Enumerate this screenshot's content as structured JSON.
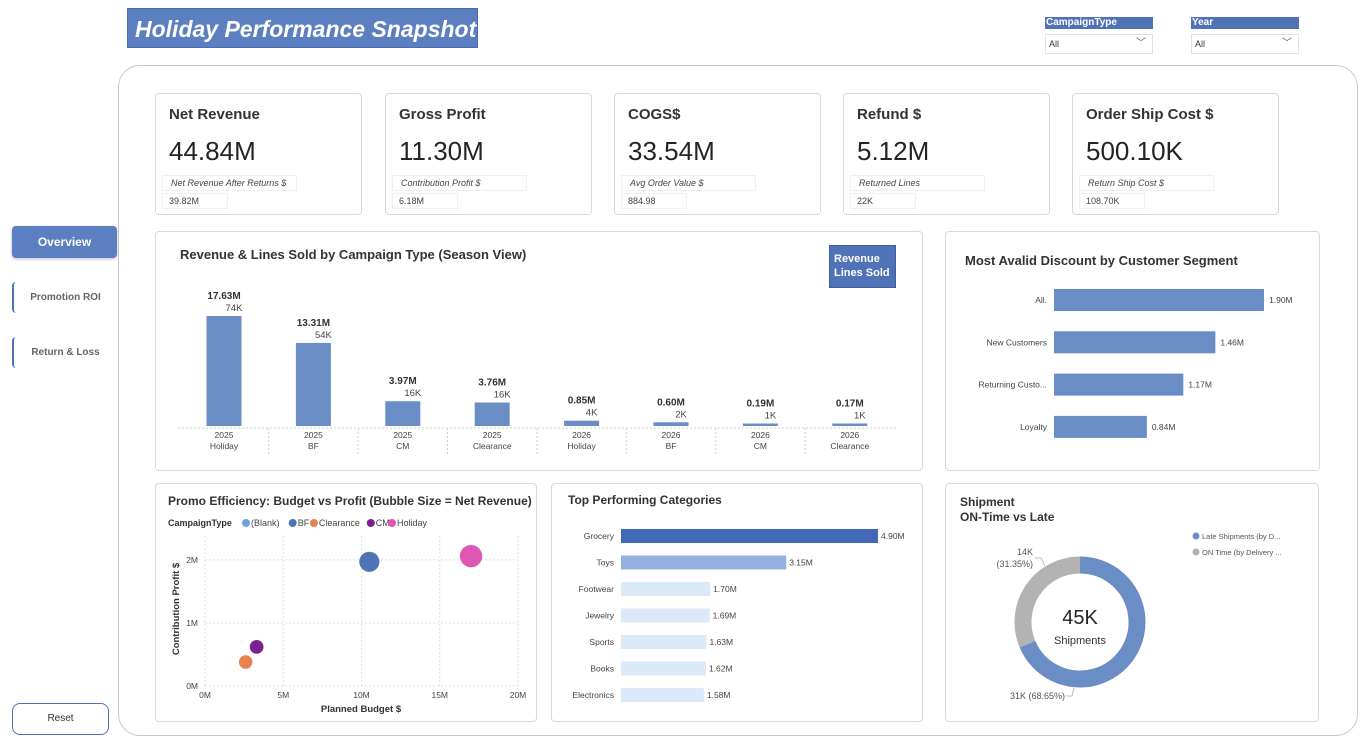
{
  "header": {
    "title": "Holiday Performance Snapshot"
  },
  "slicers": [
    {
      "label": "CampaignType",
      "value": "All"
    },
    {
      "label": "Year",
      "value": "All"
    }
  ],
  "nav": {
    "overview": "Overview",
    "promotion_roi": "Promotion ROI",
    "return_loss": "Return & Loss",
    "reset": "Reset"
  },
  "kpis": [
    {
      "title": "Net Revenue",
      "value": "44.84M",
      "sub_label": "Net Revenue After Returns $",
      "sub_value": "39.82M"
    },
    {
      "title": "Gross Profit",
      "value": "11.30M",
      "sub_label": "Contribution Profit $",
      "sub_value": "6.18M"
    },
    {
      "title": "COGS$",
      "value": "33.54M",
      "sub_label": "Avg Order Value $",
      "sub_value": "884.98"
    },
    {
      "title": "Refund $",
      "value": "5.12M",
      "sub_label": "Returned Lines",
      "sub_value": "22K"
    },
    {
      "title": "Order Ship Cost $",
      "value": "500.10K",
      "sub_label": "Return Ship Cost $",
      "sub_value": "108.70K"
    }
  ],
  "revenue_chart": {
    "title": "Revenue & Lines Sold by Campaign Type (Season View)",
    "legend": [
      "Revenue",
      "Lines Sold"
    ]
  },
  "discount_chart": {
    "title": "Most Avalid Discount by Customer Segment"
  },
  "promo_chart": {
    "title": "Promo Efficiency: Budget vs Profit (Bubble Size = Net Revenue)",
    "legend_title": "CampaignType"
  },
  "categories_chart": {
    "title": "Top Performing Categories"
  },
  "shipment": {
    "title_line1": "Shipment",
    "title_line2": "ON-Time vs Late",
    "center_value": "45K",
    "center_label": "Shipments",
    "late_label": "31K (68.65%)",
    "ontime_label_1": "14K",
    "ontime_label_2": "(31.35%)",
    "legend_late": "Late Shipments (by D...",
    "legend_ontime": "ON Time (by Delivery ..."
  },
  "colors": {
    "accent": "#5b7fc1",
    "dark_blue": "#4169b5",
    "bar": "#6a8dc6",
    "light_bar": "#dce9f8",
    "grey": "#b3b3b3"
  },
  "chart_data": [
    {
      "type": "bar",
      "title": "Revenue & Lines Sold by Campaign Type (Season View)",
      "categories": [
        [
          "2025",
          "Holiday"
        ],
        [
          "2025",
          "BF"
        ],
        [
          "2025",
          "CM"
        ],
        [
          "2025",
          "Clearance"
        ],
        [
          "2026",
          "Holiday"
        ],
        [
          "2026",
          "BF"
        ],
        [
          "2026",
          "CM"
        ],
        [
          "2026",
          "Clearance"
        ]
      ],
      "series": [
        {
          "name": "Revenue",
          "values": [
            17.63,
            13.31,
            3.97,
            3.76,
            0.85,
            0.6,
            0.19,
            0.17
          ],
          "labels": [
            "17.63M",
            "13.31M",
            "3.97M",
            "3.76M",
            "0.85M",
            "0.60M",
            "0.19M",
            "0.17M"
          ]
        },
        {
          "name": "Lines Sold",
          "values": [
            74,
            54,
            16,
            16,
            4,
            2,
            1,
            1
          ],
          "labels": [
            "74K",
            "54K",
            "16K",
            "16K",
            "4K",
            "2K",
            "1K",
            "1K"
          ]
        }
      ]
    },
    {
      "type": "bar",
      "orientation": "horizontal",
      "title": "Most Avalid Discount by Customer Segment",
      "categories": [
        "All.",
        "New Customers",
        "Returning Custo...",
        "Loyalty"
      ],
      "values": [
        1.9,
        1.46,
        1.17,
        0.84
      ],
      "labels": [
        "1.90M",
        "1.46M",
        "1.17M",
        "0.84M"
      ]
    },
    {
      "type": "scatter",
      "title": "Promo Efficiency: Budget vs Profit (Bubble Size = Net Revenue)",
      "xlabel": "Planned Budget $",
      "ylabel": "Contribution Profit $",
      "xlim": [
        0,
        20
      ],
      "ylim": [
        0,
        2.3
      ],
      "xticks": [
        "0M",
        "5M",
        "10M",
        "15M",
        "20M"
      ],
      "yticks": [
        "0M",
        "1M",
        "2M"
      ],
      "legend": [
        {
          "name": "(Blank)",
          "color": "#6f9ee6"
        },
        {
          "name": "BF",
          "color": "#4f73b6"
        },
        {
          "name": "Clearance",
          "color": "#e8834f"
        },
        {
          "name": "CM",
          "color": "#7b2290"
        },
        {
          "name": "Holiday",
          "color": "#e056b4"
        }
      ],
      "points": [
        {
          "series": "BF",
          "x": 10.5,
          "y": 1.97,
          "size": 13.91
        },
        {
          "series": "Holiday",
          "x": 17.0,
          "y": 2.06,
          "size": 18.48
        },
        {
          "series": "CM",
          "x": 3.3,
          "y": 0.62,
          "size": 4.16
        },
        {
          "series": "Clearance",
          "x": 2.6,
          "y": 0.38,
          "size": 3.93
        }
      ]
    },
    {
      "type": "bar",
      "orientation": "horizontal",
      "title": "Top Performing Categories",
      "categories": [
        "Grocery",
        "Toys",
        "Footwear",
        "Jewelry",
        "Sports",
        "Books",
        "Electronics"
      ],
      "values": [
        4.9,
        3.15,
        1.7,
        1.69,
        1.63,
        1.62,
        1.58
      ],
      "labels": [
        "4.90M",
        "3.15M",
        "1.70M",
        "1.69M",
        "1.63M",
        "1.62M",
        "1.58M"
      ]
    },
    {
      "type": "pie",
      "title": "Shipment ON-Time vs Late",
      "categories": [
        "Late Shipments (by D...",
        "ON Time (by Delivery ..."
      ],
      "values": [
        68.65,
        31.35
      ]
    }
  ]
}
